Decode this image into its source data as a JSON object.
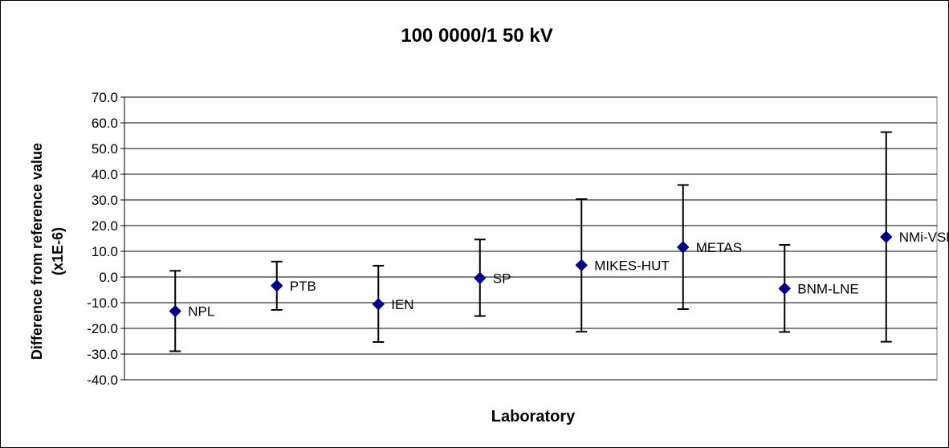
{
  "chart_data": {
    "type": "scatter",
    "title": "100 0000/1  50 kV",
    "xlabel": "Laboratory",
    "ylabel_lines": [
      "Difference from reference value",
      "(x1E-6)"
    ],
    "ylim": [
      -40,
      70
    ],
    "y_ticks": [
      "70.0",
      "60.0",
      "50.0",
      "40.0",
      "30.0",
      "20.0",
      "10.0",
      "0.0",
      "-10.0",
      "-20.0",
      "-30.0",
      "-40.0"
    ],
    "grid": true,
    "legend": "none",
    "marker_color": "#000080",
    "categories": [
      "NPL",
      "PTB",
      "IEN",
      "SP",
      "MIKES-HUT",
      "METAS",
      "BNM-LNE",
      "NMi-VSL"
    ],
    "values": [
      -13.3,
      -3.4,
      -10.6,
      -0.4,
      4.6,
      11.6,
      -4.5,
      15.6
    ],
    "error_low": [
      -28.9,
      -12.8,
      -25.3,
      -15.2,
      -21.3,
      -12.5,
      -21.4,
      -25.2
    ],
    "error_high": [
      2.4,
      6.0,
      4.4,
      14.6,
      30.3,
      35.8,
      12.5,
      56.4
    ]
  }
}
